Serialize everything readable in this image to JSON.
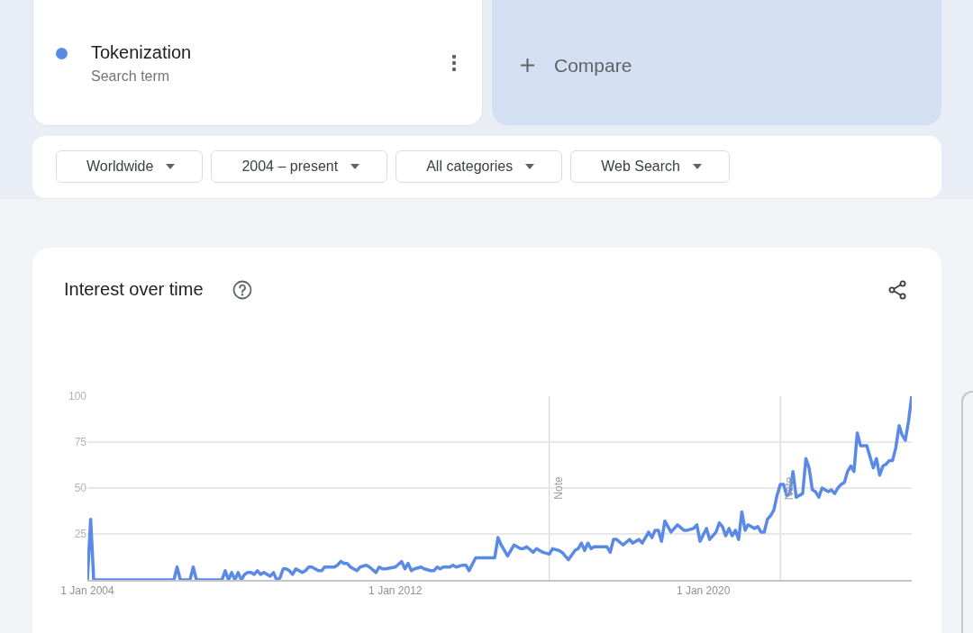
{
  "chart_data": {
    "type": "line",
    "title": "Interest over time",
    "annotations": [
      "Search term",
      "Compare",
      "Worldwide",
      "2004 – present",
      "All categories",
      "Web Search"
    ],
    "x": [
      "2004-01",
      "2004-02",
      "2004-03",
      "2006-04",
      "2006-05",
      "2006-06",
      "2006-09",
      "2006-10",
      "2006-11",
      "2007-07",
      "2007-08",
      "2007-09",
      "2007-10",
      "2007-11",
      "2007-12",
      "2008-01",
      "2008-02",
      "2008-03",
      "2008-04",
      "2008-05",
      "2008-06",
      "2008-07",
      "2008-08",
      "2008-09",
      "2008-10",
      "2008-11",
      "2008-12",
      "2009-01",
      "2009-02",
      "2009-03",
      "2009-04",
      "2009-05",
      "2009-06",
      "2009-07",
      "2009-08",
      "2009-09",
      "2009-10",
      "2009-11",
      "2009-12",
      "2010-01",
      "2010-02",
      "2010-03",
      "2010-04",
      "2010-05",
      "2010-06",
      "2010-07",
      "2010-08",
      "2010-09",
      "2010-10",
      "2010-11",
      "2011-01",
      "2011-02",
      "2011-04",
      "2011-05",
      "2011-07",
      "2011-08",
      "2011-09",
      "2011-10",
      "2012-01",
      "2012-03",
      "2012-04",
      "2012-05",
      "2012-06",
      "2012-07",
      "2012-09",
      "2012-10",
      "2012-12",
      "2013-01",
      "2013-02",
      "2013-03",
      "2013-04",
      "2013-06",
      "2013-07",
      "2013-08",
      "2013-10",
      "2013-11",
      "2013-12",
      "2014-02",
      "2014-04",
      "2014-08",
      "2014-09",
      "2014-10",
      "2014-12",
      "2015-02",
      "2015-04",
      "2015-05",
      "2015-06",
      "2015-08",
      "2015-09",
      "2015-11",
      "2016-01",
      "2016-02",
      "2016-04",
      "2016-05",
      "2016-07",
      "2016-09",
      "2016-10",
      "2016-11",
      "2016-12",
      "2017-01",
      "2017-02",
      "2017-03",
      "2017-07",
      "2017-08",
      "2017-09",
      "2017-10",
      "2017-12",
      "2018-02",
      "2018-03",
      "2018-05",
      "2018-06",
      "2018-08",
      "2018-09",
      "2018-10",
      "2018-11",
      "2018-12",
      "2019-01",
      "2019-03",
      "2019-05",
      "2019-07",
      "2019-08",
      "2019-10",
      "2019-11",
      "2019-12",
      "2020-02",
      "2020-03",
      "2020-05",
      "2020-06",
      "2020-07",
      "2020-08",
      "2020-09",
      "2020-10",
      "2020-11",
      "2020-12",
      "2021-01",
      "2021-02",
      "2021-03",
      "2021-05",
      "2021-06",
      "2021-07",
      "2021-08",
      "2021-09",
      "2021-10",
      "2021-11",
      "2021-12",
      "2022-01",
      "2022-02",
      "2022-03",
      "2022-04",
      "2022-05",
      "2022-06",
      "2022-08",
      "2022-09",
      "2022-10",
      "2022-11",
      "2022-12",
      "2023-01",
      "2023-02",
      "2023-04",
      "2023-05",
      "2023-06",
      "2023-07",
      "2023-08",
      "2023-09",
      "2023-10",
      "2023-11",
      "2023-12",
      "2024-01",
      "2024-02",
      "2024-04",
      "2024-05",
      "2024-06",
      "2024-07",
      "2024-08",
      "2024-09",
      "2024-10",
      "2024-11",
      "2024-12",
      "2025-01",
      "2025-02",
      "2025-03",
      "2025-04",
      "2025-05",
      "2025-06"
    ],
    "series": [
      {
        "name": "Tokenization",
        "color": "#5a8ae6",
        "values": [
          0,
          33,
          0,
          0,
          7,
          0,
          0,
          7,
          0,
          0,
          5,
          0,
          4,
          0,
          4,
          0,
          3,
          4,
          4,
          3,
          5,
          3,
          4,
          3,
          2,
          4,
          0,
          1,
          6,
          6,
          5,
          3,
          6,
          5,
          4,
          5,
          7,
          7,
          6,
          5,
          5,
          7,
          7,
          7,
          7,
          8,
          10,
          9,
          9,
          7,
          5,
          7,
          8,
          7,
          4,
          7,
          6,
          6,
          7,
          10,
          6,
          9,
          5,
          6,
          7,
          6,
          5,
          5,
          7,
          6,
          7,
          7,
          8,
          7,
          8,
          8,
          5,
          12,
          12,
          12,
          23,
          19,
          13,
          19,
          17,
          17,
          18,
          15,
          17,
          15,
          14,
          17,
          16,
          15,
          11,
          16,
          17,
          20,
          16,
          20,
          17,
          18,
          18,
          15,
          22,
          22,
          19,
          22,
          20,
          22,
          20,
          26,
          23,
          27,
          27,
          21,
          32,
          26,
          30,
          27,
          27,
          28,
          30,
          21,
          28,
          22,
          26,
          31,
          29,
          24,
          28,
          24,
          27,
          22,
          37,
          27,
          30,
          28,
          29,
          26,
          26,
          33,
          35,
          38,
          46,
          52,
          52,
          46,
          47,
          59,
          45,
          47,
          66,
          61,
          49,
          48,
          45,
          50,
          48,
          49,
          47,
          50,
          52,
          53,
          59,
          62,
          59,
          80,
          73,
          73,
          67,
          61,
          66,
          57,
          62,
          63,
          65,
          65,
          72,
          84,
          79,
          76,
          86,
          100
        ]
      }
    ],
    "xlim": [
      "2004-01-01",
      "2025-06-01"
    ],
    "xticks": [
      {
        "value": "2004-01-01",
        "label": "1 Jan 2004"
      },
      {
        "value": "2012-01-01",
        "label": "1 Jan 2012"
      },
      {
        "value": "2020-01-01",
        "label": "1 Jan 2020"
      }
    ],
    "ylim": [
      0,
      100
    ],
    "yticks": [
      25,
      50,
      75,
      100
    ],
    "ref_lines": [
      {
        "axis": "x",
        "value": "2016-01-01",
        "label": "Note"
      },
      {
        "axis": "x",
        "value": "2022-01-01",
        "label": "Note"
      }
    ],
    "grid": "y",
    "legend": "top left"
  }
}
